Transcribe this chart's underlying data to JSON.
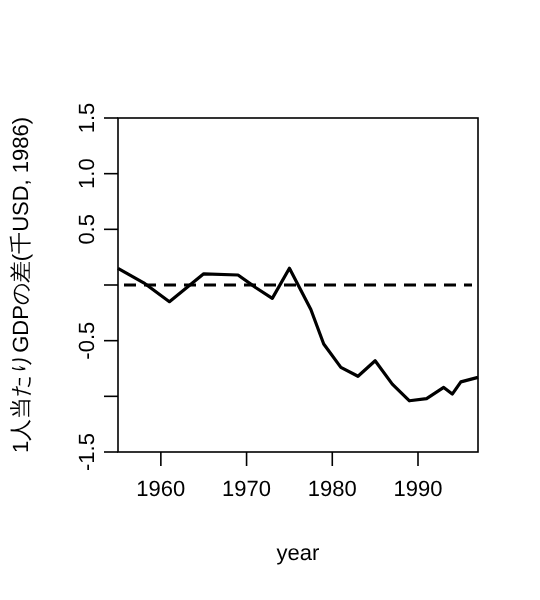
{
  "chart_data": {
    "type": "line",
    "xlabel": "year",
    "ylabel": "1人当たりGDPの差(千USD, 1986)",
    "x": [
      1955,
      1958,
      1961,
      1965,
      1969,
      1971,
      1973,
      1975,
      1977.5,
      1979,
      1981,
      1983,
      1985,
      1987,
      1989,
      1991,
      1993,
      1994,
      1995,
      1997
    ],
    "series": [
      {
        "color": "#000000",
        "values": [
          0.15,
          0.02,
          -0.15,
          0.1,
          0.09,
          -0.02,
          -0.12,
          0.15,
          -0.22,
          -0.53,
          -0.74,
          -0.82,
          -0.68,
          -0.89,
          -1.04,
          -1.02,
          -0.92,
          -0.98,
          -0.87,
          -0.83
        ]
      }
    ],
    "xlim": [
      1955,
      1997
    ],
    "xticks": [
      1960,
      1970,
      1980,
      1990
    ],
    "ylim": [
      -1.5,
      1.5
    ],
    "yticks": [
      -1.5,
      {
        "value": -1,
        "label": null
      },
      -0.5,
      {
        "value": 0,
        "label": null
      },
      0.5,
      {
        "value": 1,
        "label": "1.0"
      },
      1.5
    ],
    "ref_lines": [
      {
        "axis": "y",
        "value": 0,
        "line_style": "dashed",
        "color": "#000000"
      }
    ],
    "marker": "none",
    "line_style": "solid"
  }
}
